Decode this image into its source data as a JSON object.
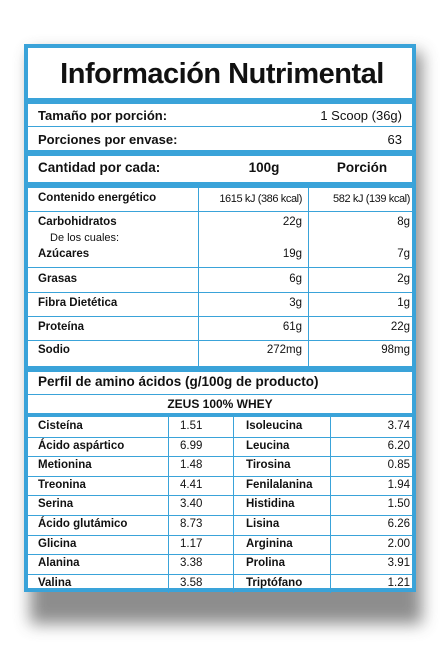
{
  "title": "Información Nutrimental",
  "serving": {
    "label": "Tamaño por porción:",
    "value": "1 Scoop (36g)"
  },
  "servings_per_container": {
    "label": "Porciones por envase:",
    "value": "63"
  },
  "header": {
    "label": "Cantidad por cada:",
    "col1": "100g",
    "col2": "Porción"
  },
  "energy": {
    "label": "Contenido energético",
    "v1": "1615 kJ (386 kcal)",
    "v2": "582 kJ (139 kcal)"
  },
  "carbs": {
    "label": "Carbohidratos",
    "v1": "22g",
    "v2": "8g",
    "sub": "De los cuales:"
  },
  "nutrients": [
    {
      "label": "Azúcares",
      "v1": "19g",
      "v2": "7g"
    },
    {
      "label": "Grasas",
      "v1": "6g",
      "v2": "2g"
    },
    {
      "label": "Fibra Dietética",
      "v1": "3g",
      "v2": "1g"
    },
    {
      "label": "Proteína",
      "v1": "61g",
      "v2": "22g"
    },
    {
      "label": "Sodio",
      "v1": "272mg",
      "v2": "98mg"
    }
  ],
  "amino": {
    "title": "Perfil de amino ácidos (g/100g de producto)",
    "product": "ZEUS 100% WHEY",
    "left": [
      {
        "name": "Cisteína",
        "value": "1.51"
      },
      {
        "name": "Ácido aspártico",
        "value": "6.99"
      },
      {
        "name": "Metionina",
        "value": "1.48"
      },
      {
        "name": "Treonina",
        "value": "4.41"
      },
      {
        "name": "Serina",
        "value": "3.40"
      },
      {
        "name": "Ácido glutámico",
        "value": "8.73"
      },
      {
        "name": "Glicina",
        "value": "1.17"
      },
      {
        "name": "Alanina",
        "value": "3.38"
      },
      {
        "name": "Valina",
        "value": "3.58"
      }
    ],
    "right": [
      {
        "name": "Isoleucina",
        "value": "3.74"
      },
      {
        "name": "Leucina",
        "value": "6.20"
      },
      {
        "name": "Tirosina",
        "value": "0.85"
      },
      {
        "name": "Fenilalanina",
        "value": "1.94"
      },
      {
        "name": "Histidina",
        "value": "1.50"
      },
      {
        "name": "Lisina",
        "value": "6.26"
      },
      {
        "name": "Arginina",
        "value": "2.00"
      },
      {
        "name": "Prolina",
        "value": "3.91"
      },
      {
        "name": "Triptófano",
        "value": "1.21"
      }
    ]
  },
  "colors": {
    "border": "#3aa3d9",
    "text": "#111111"
  }
}
